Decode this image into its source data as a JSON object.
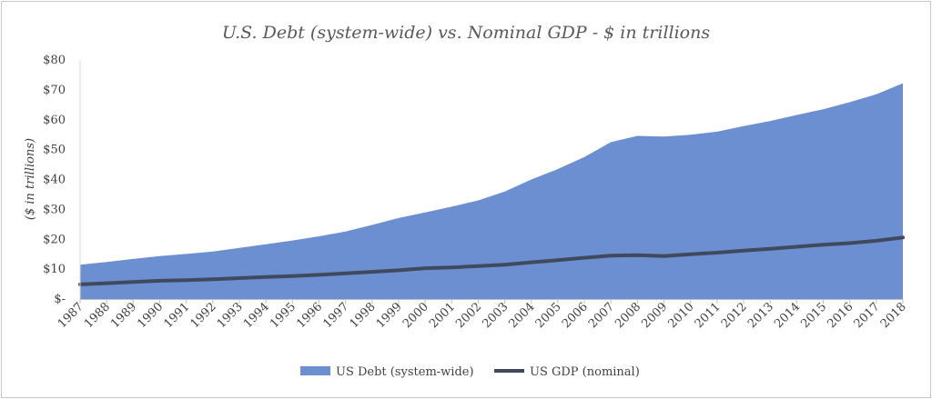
{
  "chart_data": {
    "type": "area",
    "title": "U.S. Debt (system-wide) vs. Nominal GDP - $ in trillions",
    "ylabel": "($ in trillions)",
    "xlabel": "",
    "ylim": [
      0,
      80
    ],
    "y_ticks": [
      0,
      10,
      20,
      30,
      40,
      50,
      60,
      70,
      80
    ],
    "y_tick_labels": [
      "$-",
      "$10",
      "$20",
      "$30",
      "$40",
      "$50",
      "$60",
      "$70",
      "$80"
    ],
    "grid": false,
    "legend_position": "bottom",
    "x": [
      "1987",
      "1988",
      "1989",
      "1990",
      "1991",
      "1992",
      "1993",
      "1994",
      "1995",
      "1996",
      "1997",
      "1998",
      "1999",
      "2000",
      "2001",
      "2002",
      "2003",
      "2004",
      "2005",
      "2006",
      "2007",
      "2008",
      "2009",
      "2010",
      "2011",
      "2012",
      "2013",
      "2014",
      "2015",
      "2016",
      "2017",
      "2018"
    ],
    "series": [
      {
        "name": "US Debt (system-wide)",
        "type": "area",
        "color": "#6b8fd1",
        "values": [
          11.5,
          12.4,
          13.4,
          14.4,
          15.1,
          15.9,
          17.1,
          18.3,
          19.6,
          21.0,
          22.6,
          24.8,
          27.1,
          29.0,
          30.9,
          33.0,
          36.0,
          40.0,
          43.5,
          47.5,
          52.5,
          54.6,
          54.4,
          55.0,
          56.0,
          57.9,
          59.6,
          61.6,
          63.5,
          65.9,
          68.5,
          72.2
        ]
      },
      {
        "name": "US GDP (nominal)",
        "type": "line",
        "color": "#404a5c",
        "values": [
          4.9,
          5.3,
          5.7,
          6.1,
          6.3,
          6.6,
          7.0,
          7.4,
          7.7,
          8.1,
          8.6,
          9.1,
          9.6,
          10.3,
          10.6,
          11.0,
          11.5,
          12.3,
          13.0,
          13.8,
          14.5,
          14.7,
          14.4,
          15.0,
          15.5,
          16.2,
          16.8,
          17.5,
          18.2,
          18.7,
          19.5,
          20.6
        ]
      }
    ]
  }
}
